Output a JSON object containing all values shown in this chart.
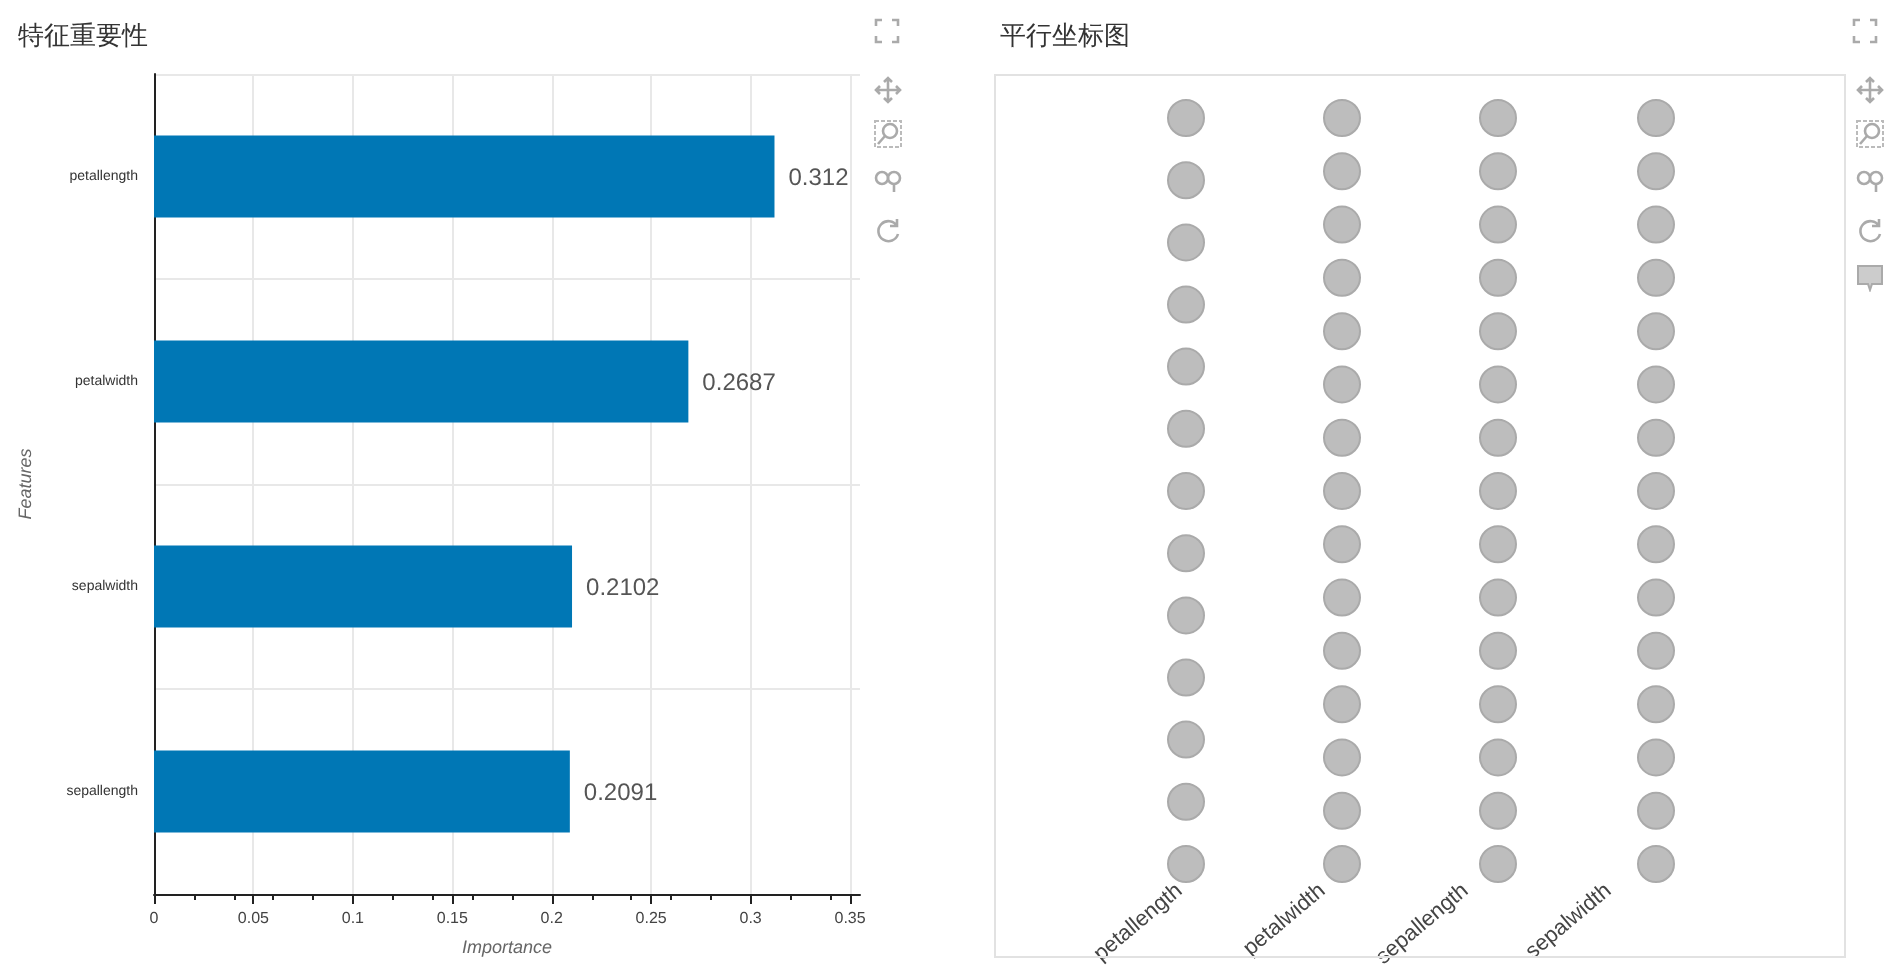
{
  "chart_data": [
    {
      "type": "bar",
      "title": "特征重要性",
      "xlabel": "Importance",
      "ylabel": "Features",
      "orientation": "horizontal",
      "categories": [
        "petallength",
        "petalwidth",
        "sepalwidth",
        "sepallength"
      ],
      "values": [
        0.312,
        0.2687,
        0.2102,
        0.2091
      ],
      "color": "#0077b5",
      "xlim": [
        0,
        0.355
      ],
      "xticks": [
        0,
        0.05,
        0.1,
        0.15,
        0.2,
        0.25,
        0.3,
        0.35
      ],
      "grid": true,
      "data_labels": true
    },
    {
      "type": "other",
      "title": "平行坐标图",
      "categories": [
        "petallength",
        "petalwidth",
        "sepallength",
        "sepalwidth"
      ]
    }
  ]
}
